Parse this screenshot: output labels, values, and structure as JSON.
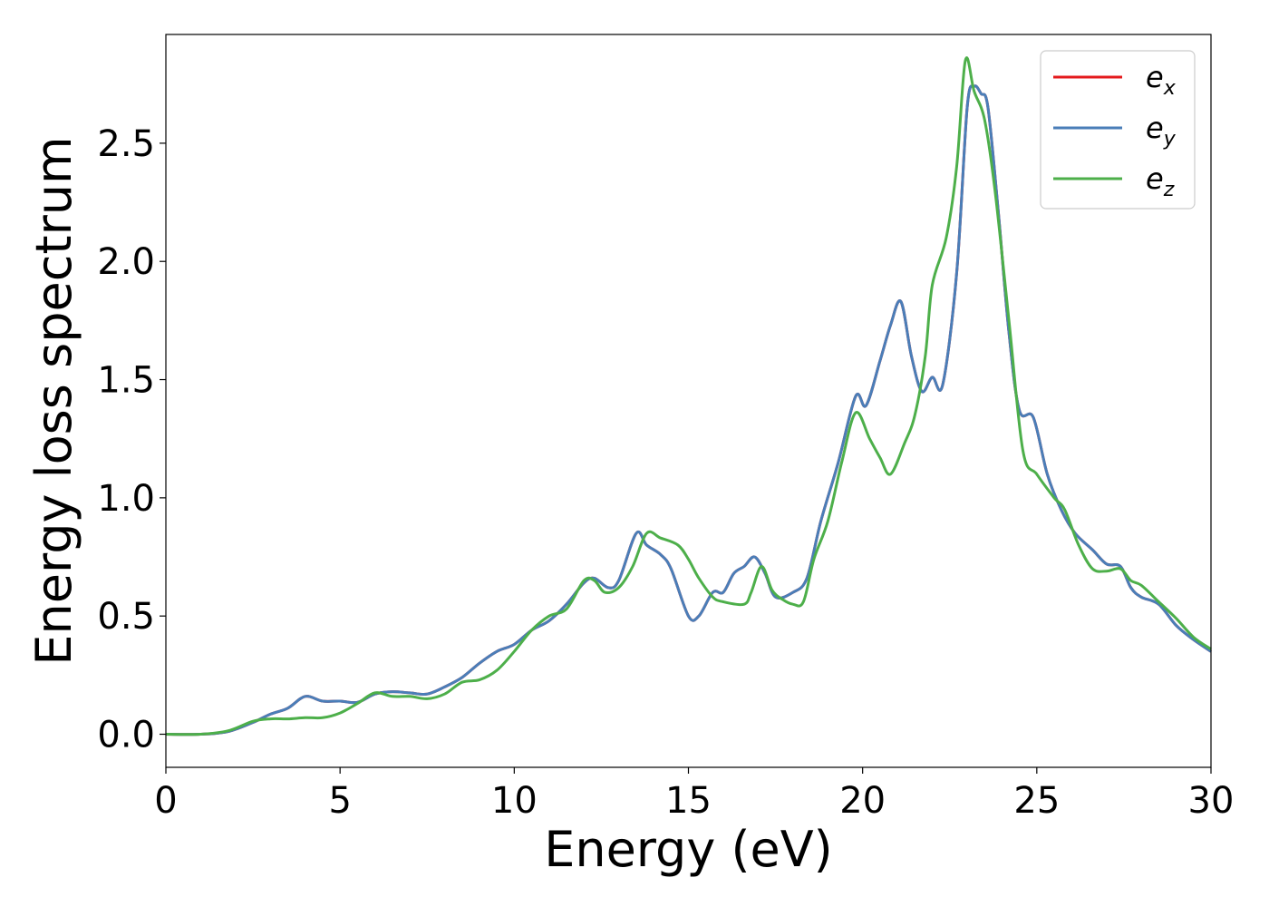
{
  "chart_data": {
    "type": "line",
    "xlabel": "Energy (eV)",
    "ylabel": "Energy loss spectrum",
    "xlim": [
      0,
      30
    ],
    "ylim": [
      -0.14,
      2.96
    ],
    "grid": false,
    "legend_position": "top-right",
    "x_ticks": [
      "0",
      "5",
      "10",
      "15",
      "20",
      "25",
      "30"
    ],
    "y_ticks": [
      "0.0",
      "0.5",
      "1.0",
      "1.5",
      "2.0",
      "2.5"
    ],
    "series": [
      {
        "name_base": "e",
        "name_sub": "x",
        "color": "#e41a1c",
        "points": [
          [
            0,
            0
          ],
          [
            1,
            0
          ],
          [
            1.8,
            0.012
          ],
          [
            2.5,
            0.05
          ],
          [
            3,
            0.085
          ],
          [
            3.5,
            0.11
          ],
          [
            4,
            0.16
          ],
          [
            4.5,
            0.14
          ],
          [
            5,
            0.14
          ],
          [
            5.5,
            0.135
          ],
          [
            6,
            0.17
          ],
          [
            6.5,
            0.18
          ],
          [
            7,
            0.175
          ],
          [
            7.5,
            0.17
          ],
          [
            8,
            0.2
          ],
          [
            8.5,
            0.24
          ],
          [
            9,
            0.3
          ],
          [
            9.5,
            0.35
          ],
          [
            10,
            0.38
          ],
          [
            10.5,
            0.44
          ],
          [
            11,
            0.48
          ],
          [
            11.5,
            0.55
          ],
          [
            12,
            0.64
          ],
          [
            12.3,
            0.66
          ],
          [
            12.7,
            0.62
          ],
          [
            13,
            0.65
          ],
          [
            13.5,
            0.85
          ],
          [
            13.8,
            0.8
          ],
          [
            14.2,
            0.76
          ],
          [
            14.5,
            0.7
          ],
          [
            15,
            0.5
          ],
          [
            15.3,
            0.5
          ],
          [
            15.7,
            0.6
          ],
          [
            16,
            0.6
          ],
          [
            16.3,
            0.68
          ],
          [
            16.6,
            0.71
          ],
          [
            16.9,
            0.75
          ],
          [
            17.2,
            0.68
          ],
          [
            17.5,
            0.58
          ],
          [
            18,
            0.6
          ],
          [
            18.4,
            0.66
          ],
          [
            18.8,
            0.9
          ],
          [
            19.3,
            1.15
          ],
          [
            19.8,
            1.43
          ],
          [
            20.1,
            1.39
          ],
          [
            20.5,
            1.58
          ],
          [
            20.8,
            1.73
          ],
          [
            21.1,
            1.83
          ],
          [
            21.4,
            1.6
          ],
          [
            21.7,
            1.45
          ],
          [
            22,
            1.51
          ],
          [
            22.3,
            1.48
          ],
          [
            22.7,
            1.95
          ],
          [
            23,
            2.65
          ],
          [
            23.2,
            2.74
          ],
          [
            23.4,
            2.71
          ],
          [
            23.6,
            2.65
          ],
          [
            23.9,
            2.2
          ],
          [
            24.2,
            1.7
          ],
          [
            24.5,
            1.37
          ],
          [
            24.9,
            1.34
          ],
          [
            25.3,
            1.1
          ],
          [
            25.7,
            0.95
          ],
          [
            26.1,
            0.85
          ],
          [
            26.6,
            0.78
          ],
          [
            27,
            0.72
          ],
          [
            27.4,
            0.71
          ],
          [
            27.7,
            0.62
          ],
          [
            28,
            0.58
          ],
          [
            28.5,
            0.55
          ],
          [
            29,
            0.46
          ],
          [
            29.5,
            0.4
          ],
          [
            30,
            0.35
          ]
        ]
      },
      {
        "name_base": "e",
        "name_sub": "y",
        "color": "#4a7eb8",
        "points": [
          [
            0,
            0
          ],
          [
            1,
            0
          ],
          [
            1.8,
            0.012
          ],
          [
            2.5,
            0.05
          ],
          [
            3,
            0.085
          ],
          [
            3.5,
            0.11
          ],
          [
            4,
            0.16
          ],
          [
            4.5,
            0.14
          ],
          [
            5,
            0.14
          ],
          [
            5.5,
            0.135
          ],
          [
            6,
            0.17
          ],
          [
            6.5,
            0.18
          ],
          [
            7,
            0.175
          ],
          [
            7.5,
            0.17
          ],
          [
            8,
            0.2
          ],
          [
            8.5,
            0.24
          ],
          [
            9,
            0.3
          ],
          [
            9.5,
            0.35
          ],
          [
            10,
            0.38
          ],
          [
            10.5,
            0.44
          ],
          [
            11,
            0.48
          ],
          [
            11.5,
            0.55
          ],
          [
            12,
            0.64
          ],
          [
            12.3,
            0.66
          ],
          [
            12.7,
            0.62
          ],
          [
            13,
            0.65
          ],
          [
            13.5,
            0.85
          ],
          [
            13.8,
            0.8
          ],
          [
            14.2,
            0.76
          ],
          [
            14.5,
            0.7
          ],
          [
            15,
            0.5
          ],
          [
            15.3,
            0.5
          ],
          [
            15.7,
            0.6
          ],
          [
            16,
            0.6
          ],
          [
            16.3,
            0.68
          ],
          [
            16.6,
            0.71
          ],
          [
            16.9,
            0.75
          ],
          [
            17.2,
            0.68
          ],
          [
            17.5,
            0.58
          ],
          [
            18,
            0.6
          ],
          [
            18.4,
            0.66
          ],
          [
            18.8,
            0.9
          ],
          [
            19.3,
            1.15
          ],
          [
            19.8,
            1.43
          ],
          [
            20.1,
            1.39
          ],
          [
            20.5,
            1.58
          ],
          [
            20.8,
            1.73
          ],
          [
            21.1,
            1.83
          ],
          [
            21.4,
            1.6
          ],
          [
            21.7,
            1.45
          ],
          [
            22,
            1.51
          ],
          [
            22.3,
            1.48
          ],
          [
            22.7,
            1.95
          ],
          [
            23,
            2.65
          ],
          [
            23.2,
            2.74
          ],
          [
            23.4,
            2.71
          ],
          [
            23.6,
            2.65
          ],
          [
            23.9,
            2.2
          ],
          [
            24.2,
            1.7
          ],
          [
            24.5,
            1.37
          ],
          [
            24.9,
            1.34
          ],
          [
            25.3,
            1.1
          ],
          [
            25.7,
            0.95
          ],
          [
            26.1,
            0.85
          ],
          [
            26.6,
            0.78
          ],
          [
            27,
            0.72
          ],
          [
            27.4,
            0.71
          ],
          [
            27.7,
            0.62
          ],
          [
            28,
            0.58
          ],
          [
            28.5,
            0.55
          ],
          [
            29,
            0.46
          ],
          [
            29.5,
            0.4
          ],
          [
            30,
            0.35
          ]
        ]
      },
      {
        "name_base": "e",
        "name_sub": "z",
        "color": "#4daf4a",
        "points": [
          [
            0,
            0
          ],
          [
            1,
            0
          ],
          [
            1.8,
            0.015
          ],
          [
            2.5,
            0.055
          ],
          [
            3,
            0.065
          ],
          [
            3.5,
            0.065
          ],
          [
            4,
            0.07
          ],
          [
            4.5,
            0.07
          ],
          [
            5,
            0.09
          ],
          [
            5.5,
            0.13
          ],
          [
            6,
            0.175
          ],
          [
            6.5,
            0.16
          ],
          [
            7,
            0.16
          ],
          [
            7.5,
            0.15
          ],
          [
            8,
            0.17
          ],
          [
            8.5,
            0.22
          ],
          [
            9,
            0.23
          ],
          [
            9.5,
            0.27
          ],
          [
            10,
            0.35
          ],
          [
            10.5,
            0.44
          ],
          [
            11,
            0.5
          ],
          [
            11.5,
            0.53
          ],
          [
            12,
            0.65
          ],
          [
            12.3,
            0.65
          ],
          [
            12.6,
            0.6
          ],
          [
            13,
            0.62
          ],
          [
            13.4,
            0.71
          ],
          [
            13.8,
            0.85
          ],
          [
            14.2,
            0.83
          ],
          [
            14.7,
            0.8
          ],
          [
            15,
            0.74
          ],
          [
            15.3,
            0.66
          ],
          [
            15.7,
            0.58
          ],
          [
            16,
            0.56
          ],
          [
            16.6,
            0.55
          ],
          [
            16.8,
            0.6
          ],
          [
            17.1,
            0.71
          ],
          [
            17.4,
            0.61
          ],
          [
            17.7,
            0.57
          ],
          [
            18,
            0.55
          ],
          [
            18.3,
            0.56
          ],
          [
            18.6,
            0.74
          ],
          [
            19,
            0.9
          ],
          [
            19.4,
            1.15
          ],
          [
            19.8,
            1.36
          ],
          [
            20.2,
            1.25
          ],
          [
            20.5,
            1.17
          ],
          [
            20.8,
            1.1
          ],
          [
            21.2,
            1.23
          ],
          [
            21.5,
            1.35
          ],
          [
            21.8,
            1.6
          ],
          [
            22,
            1.9
          ],
          [
            22.4,
            2.1
          ],
          [
            22.7,
            2.4
          ],
          [
            22.95,
            2.85
          ],
          [
            23.2,
            2.72
          ],
          [
            23.5,
            2.6
          ],
          [
            23.8,
            2.3
          ],
          [
            24.2,
            1.75
          ],
          [
            24.6,
            1.2
          ],
          [
            25,
            1.1
          ],
          [
            25.5,
            1.0
          ],
          [
            25.8,
            0.95
          ],
          [
            26.2,
            0.8
          ],
          [
            26.6,
            0.7
          ],
          [
            27,
            0.69
          ],
          [
            27.4,
            0.7
          ],
          [
            27.7,
            0.65
          ],
          [
            28,
            0.63
          ],
          [
            28.5,
            0.56
          ],
          [
            29,
            0.49
          ],
          [
            29.5,
            0.41
          ],
          [
            30,
            0.36
          ]
        ]
      }
    ]
  }
}
